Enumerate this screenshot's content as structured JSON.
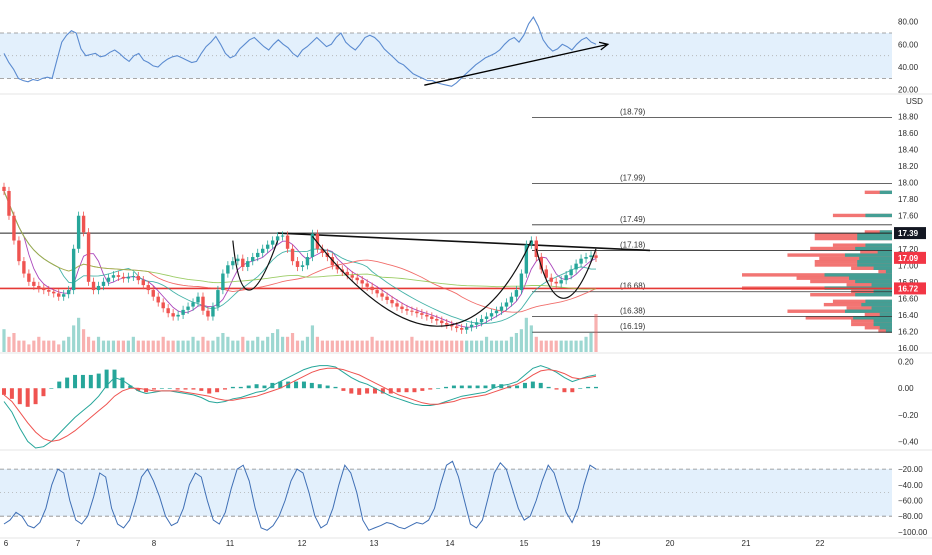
{
  "colors": {
    "accent_blue": "#5b8bd0",
    "band_fill": "#e3f0fc",
    "candle_up": "#26a69a",
    "candle_down": "#ef5350",
    "price_black_tag": "#131722",
    "price_red_tag": "#f23645",
    "support_line": "#e53935",
    "grid_text": "#2b2b2b"
  },
  "currency_label": "USD",
  "x_axis": {
    "labels": [
      "6",
      "7",
      "8",
      "11",
      "12",
      "13",
      "14",
      "15",
      "19",
      "20",
      "21",
      "22"
    ]
  },
  "price_tags": [
    {
      "label": "17.39",
      "value": 17.39,
      "style": "black"
    },
    {
      "label": "17.09",
      "value": 17.09,
      "style": "red"
    },
    {
      "label": "16.72",
      "value": 16.72,
      "style": "red"
    }
  ],
  "chart_data": [
    {
      "type": "line",
      "panel": "rsi",
      "y_ticks": [
        "80.00",
        "60.00",
        "40.00",
        "20.00"
      ],
      "ylim": [
        18,
        92
      ],
      "band": [
        30,
        70
      ],
      "series": [
        {
          "values": [
            52,
            44,
            38,
            30,
            28,
            27,
            29,
            28,
            30,
            31,
            30,
            46,
            62,
            68,
            72,
            70,
            56,
            50,
            51,
            52,
            49,
            50,
            53,
            55,
            52,
            48,
            45,
            50,
            52,
            46,
            44,
            41,
            40,
            44,
            47,
            49,
            50,
            48,
            46,
            44,
            45,
            52,
            58,
            62,
            67,
            60,
            52,
            48,
            50,
            56,
            60,
            64,
            66,
            62,
            58,
            55,
            60,
            64,
            60,
            57,
            52,
            49,
            55,
            58,
            62,
            66,
            62,
            58,
            60,
            66,
            70,
            62,
            58,
            55,
            60,
            66,
            68,
            66,
            62,
            56,
            52,
            48,
            44,
            42,
            38,
            34,
            32,
            30,
            28,
            28,
            26,
            25,
            24,
            23,
            26,
            30,
            34,
            38,
            42,
            45,
            48,
            50,
            52,
            55,
            60,
            64,
            66,
            62,
            68,
            78,
            84,
            76,
            64,
            58,
            54,
            56,
            60,
            58,
            55,
            60,
            64,
            66,
            62,
            60
          ]
        }
      ],
      "annotations": [
        {
          "type": "arrow",
          "from": [
            0.71,
            24
          ],
          "to": [
            1.02,
            60
          ],
          "label": ""
        }
      ]
    },
    {
      "type": "candlestick",
      "panel": "price",
      "y_ticks": [
        "18.80",
        "18.60",
        "18.40",
        "18.20",
        "18.00",
        "17.80",
        "17.60",
        "17.40",
        "17.20",
        "17.00",
        "16.80",
        "16.60",
        "16.40",
        "16.20",
        "16.00"
      ],
      "ylim": [
        15.95,
        19.05
      ],
      "closes": [
        17.9,
        17.6,
        17.3,
        17.05,
        16.9,
        16.8,
        16.75,
        16.72,
        16.7,
        16.68,
        16.66,
        16.62,
        16.65,
        16.7,
        17.2,
        17.6,
        17.4,
        16.8,
        16.7,
        16.75,
        16.8,
        16.85,
        16.88,
        16.86,
        16.84,
        16.86,
        16.87,
        16.82,
        16.76,
        16.7,
        16.62,
        16.55,
        16.48,
        16.42,
        16.38,
        16.4,
        16.46,
        16.5,
        16.55,
        16.62,
        16.45,
        16.38,
        16.5,
        16.7,
        16.9,
        17.0,
        17.05,
        17.08,
        16.98,
        17.05,
        17.1,
        17.15,
        17.2,
        17.25,
        17.3,
        17.35,
        17.36,
        17.2,
        17.05,
        16.98,
        17.0,
        17.1,
        17.38,
        17.2,
        17.15,
        17.1,
        17.0,
        16.95,
        16.92,
        16.88,
        16.85,
        16.82,
        16.78,
        16.74,
        16.7,
        16.66,
        16.62,
        16.58,
        16.54,
        16.5,
        16.47,
        16.45,
        16.44,
        16.42,
        16.4,
        16.38,
        16.35,
        16.33,
        16.3,
        16.28,
        16.26,
        16.24,
        16.22,
        16.25,
        16.28,
        16.31,
        16.35,
        16.38,
        16.42,
        16.45,
        16.5,
        16.55,
        16.62,
        16.7,
        16.9,
        17.25,
        17.3,
        17.1,
        16.95,
        16.85,
        16.8,
        16.78,
        16.82,
        16.88,
        16.95,
        17.02,
        17.08,
        17.1,
        17.12,
        17.09
      ],
      "volume": [
        6,
        4,
        5,
        3,
        3,
        2,
        3,
        4,
        3,
        3,
        3,
        2,
        3,
        4,
        7,
        9,
        6,
        4,
        3,
        4,
        3,
        3,
        3,
        3,
        3,
        3,
        4,
        3,
        3,
        3,
        3,
        3,
        4,
        3,
        3,
        3,
        3,
        3,
        4,
        3,
        4,
        3,
        3,
        4,
        5,
        4,
        3,
        3,
        4,
        3,
        3,
        4,
        3,
        4,
        5,
        6,
        4,
        4,
        5,
        3,
        3,
        4,
        7,
        4,
        3,
        3,
        3,
        3,
        3,
        3,
        3,
        3,
        3,
        3,
        4,
        3,
        3,
        3,
        3,
        3,
        3,
        3,
        4,
        3,
        3,
        3,
        3,
        3,
        3,
        3,
        3,
        3,
        3,
        3,
        3,
        3,
        3,
        4,
        3,
        3,
        3,
        3,
        4,
        5,
        6,
        9,
        7,
        4,
        3,
        3,
        3,
        3,
        3,
        3,
        3,
        3,
        3,
        4,
        5,
        10
      ],
      "levels": [
        {
          "label": "(18.79)",
          "value": 18.79
        },
        {
          "label": "(17.99)",
          "value": 17.99
        },
        {
          "label": "(17.49)",
          "value": 17.49
        },
        {
          "label": "(17.18)",
          "value": 17.18
        },
        {
          "label": "(16.68)",
          "value": 16.68
        },
        {
          "label": "(16.38)",
          "value": 16.38
        },
        {
          "label": "(16.19)",
          "value": 16.19
        }
      ],
      "support_level": 16.72,
      "neckline": 17.39
    },
    {
      "type": "line",
      "panel": "macd",
      "y_ticks": [
        "0.20",
        "0.00",
        "−0.20",
        "−0.40"
      ],
      "ylim": [
        -0.45,
        0.25
      ],
      "series": [
        {
          "values": [
            -0.1,
            -0.18,
            -0.3,
            -0.4,
            -0.45,
            -0.44,
            -0.4,
            -0.34,
            -0.28,
            -0.22,
            -0.17,
            -0.12,
            -0.06,
            0.02,
            0.08,
            0.06,
            0.02,
            -0.02,
            -0.04,
            -0.03,
            -0.02,
            -0.02,
            -0.03,
            -0.04,
            -0.05,
            -0.07,
            -0.1,
            -0.11,
            -0.1,
            -0.08,
            -0.07,
            -0.05,
            -0.03,
            -0.02,
            0.02,
            0.05,
            0.08,
            0.11,
            0.14,
            0.16,
            0.17,
            0.17,
            0.16,
            0.12,
            0.08,
            0.05,
            0.03,
            0.0,
            -0.03,
            -0.06,
            -0.08,
            -0.1,
            -0.12,
            -0.13,
            -0.13,
            -0.12,
            -0.1,
            -0.08,
            -0.06,
            -0.05,
            -0.04,
            -0.03,
            0.0,
            0.02,
            0.03,
            0.05,
            0.1,
            0.15,
            0.17,
            0.15,
            0.12,
            0.08,
            0.05,
            0.07,
            0.09,
            0.1
          ]
        },
        {
          "values": [
            -0.05,
            -0.1,
            -0.18,
            -0.26,
            -0.33,
            -0.38,
            -0.4,
            -0.39,
            -0.36,
            -0.32,
            -0.27,
            -0.22,
            -0.17,
            -0.12,
            -0.06,
            -0.02,
            0.0,
            0.0,
            -0.01,
            -0.02,
            -0.02,
            -0.02,
            -0.02,
            -0.03,
            -0.04,
            -0.05,
            -0.06,
            -0.08,
            -0.09,
            -0.09,
            -0.08,
            -0.07,
            -0.06,
            -0.04,
            -0.02,
            0.0,
            0.03,
            0.06,
            0.09,
            0.12,
            0.14,
            0.15,
            0.15,
            0.14,
            0.12,
            0.1,
            0.07,
            0.04,
            0.01,
            -0.02,
            -0.05,
            -0.07,
            -0.09,
            -0.11,
            -0.12,
            -0.12,
            -0.11,
            -0.1,
            -0.08,
            -0.07,
            -0.06,
            -0.05,
            -0.03,
            -0.01,
            0.01,
            0.03,
            0.06,
            0.1,
            0.13,
            0.14,
            0.13,
            0.11,
            0.08,
            0.07,
            0.08,
            0.09
          ]
        }
      ],
      "histogram": [
        -0.05,
        -0.08,
        -0.12,
        -0.14,
        -0.12,
        -0.06,
        0.0,
        0.05,
        0.08,
        0.1,
        0.1,
        0.1,
        0.11,
        0.14,
        0.14,
        0.08,
        0.02,
        -0.02,
        -0.03,
        -0.01,
        0.0,
        0.0,
        -0.01,
        -0.01,
        -0.01,
        -0.02,
        -0.04,
        -0.03,
        -0.01,
        0.01,
        0.01,
        0.02,
        0.03,
        0.02,
        0.04,
        0.05,
        0.05,
        0.05,
        0.05,
        0.04,
        0.03,
        0.02,
        0.01,
        -0.02,
        -0.04,
        -0.05,
        -0.04,
        -0.04,
        -0.04,
        -0.04,
        -0.03,
        -0.03,
        -0.03,
        -0.02,
        -0.01,
        0.0,
        0.01,
        0.02,
        0.02,
        0.02,
        0.02,
        0.02,
        0.03,
        0.03,
        0.02,
        0.02,
        0.04,
        0.05,
        0.04,
        0.01,
        -0.01,
        -0.03,
        -0.03,
        0.0,
        0.01,
        0.01
      ]
    },
    {
      "type": "line",
      "panel": "williams_r",
      "y_ticks": [
        "−20.00",
        "−40.00",
        "−60.00",
        "−80.00",
        "−100.00"
      ],
      "ylim": [
        -104,
        -2
      ],
      "band": [
        -80,
        -20
      ],
      "series": [
        {
          "values": [
            -90,
            -85,
            -75,
            -80,
            -92,
            -95,
            -88,
            -70,
            -40,
            -20,
            -25,
            -60,
            -85,
            -90,
            -80,
            -55,
            -25,
            -30,
            -70,
            -90,
            -95,
            -85,
            -60,
            -30,
            -20,
            -35,
            -55,
            -80,
            -92,
            -88,
            -70,
            -40,
            -25,
            -30,
            -60,
            -85,
            -90,
            -75,
            -45,
            -20,
            -15,
            -35,
            -70,
            -95,
            -98,
            -92,
            -80,
            -60,
            -35,
            -20,
            -25,
            -50,
            -80,
            -95,
            -90,
            -70,
            -40,
            -15,
            -25,
            -50,
            -85,
            -98,
            -95,
            -92,
            -88,
            -90,
            -94,
            -96,
            -92,
            -88,
            -90,
            -85,
            -70,
            -40,
            -15,
            -10,
            -30,
            -60,
            -90,
            -95,
            -85,
            -55,
            -25,
            -12,
            -20,
            -45,
            -70,
            -85,
            -80,
            -60,
            -35,
            -15,
            -25,
            -50,
            -75,
            -88,
            -70,
            -40,
            -15,
            -20
          ]
        }
      ]
    }
  ]
}
